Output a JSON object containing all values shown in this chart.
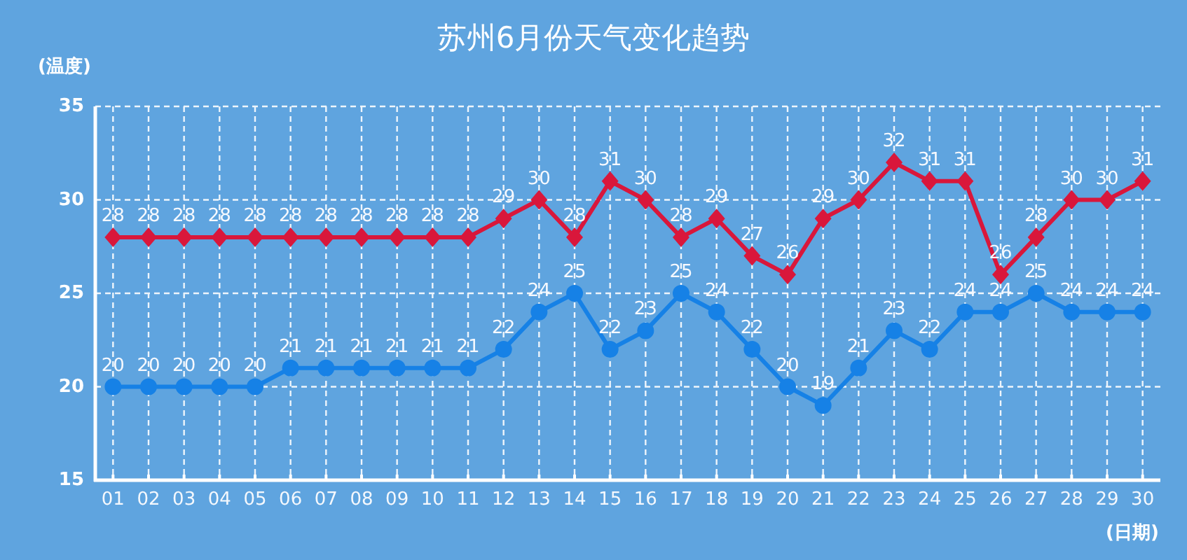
{
  "chart_data": {
    "type": "line",
    "title": "苏州6月份天气变化趋势",
    "xlabel": "(日期)",
    "ylabel": "(温度)",
    "categories": [
      "01",
      "02",
      "03",
      "04",
      "05",
      "06",
      "07",
      "08",
      "09",
      "10",
      "11",
      "12",
      "13",
      "14",
      "15",
      "16",
      "17",
      "18",
      "19",
      "20",
      "21",
      "22",
      "23",
      "24",
      "25",
      "26",
      "27",
      "28",
      "29",
      "30"
    ],
    "series": [
      {
        "color": "#d9173b",
        "marker": "diamond",
        "values": [
          28,
          28,
          28,
          28,
          28,
          28,
          28,
          28,
          28,
          28,
          28,
          29,
          30,
          28,
          31,
          30,
          28,
          29,
          27,
          26,
          29,
          30,
          32,
          31,
          31,
          26,
          28,
          30,
          30,
          31
        ]
      },
      {
        "color": "#1681e6",
        "marker": "circle",
        "values": [
          20,
          20,
          20,
          20,
          20,
          21,
          21,
          21,
          21,
          21,
          21,
          22,
          24,
          25,
          22,
          23,
          25,
          24,
          22,
          20,
          19,
          21,
          23,
          22,
          24,
          24,
          25,
          24,
          24,
          24
        ]
      }
    ],
    "ylim": [
      15,
      35
    ],
    "yticks": [
      15,
      20,
      25,
      30,
      35
    ],
    "grid": true,
    "data_labels": true
  }
}
